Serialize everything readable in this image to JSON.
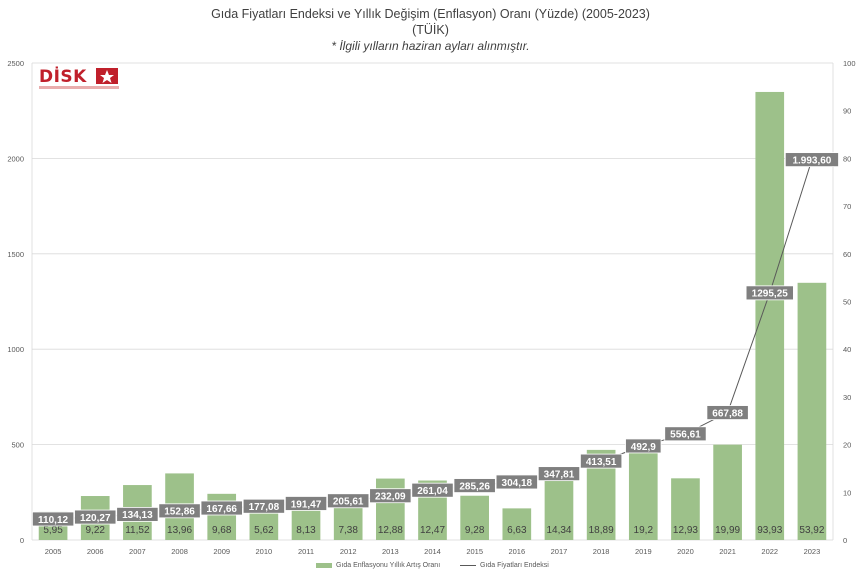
{
  "title": "Gıda Fiyatları Endeksi ve Yıllık Değişim (Enflasyon) Oranı (Yüzde) (2005-2023)",
  "subtitle": "(TÜİK)",
  "note": "* İlgili yılların haziran ayları alınmıştır.",
  "logo": {
    "text": "DİSK",
    "icon": "star-logo-icon"
  },
  "colors": {
    "bar": "#9dc18a",
    "line": "#595959",
    "label_bg": "#7f7f7f",
    "label_text": "#ffffff",
    "grid": "#d9d9d9",
    "axis_text": "#595959"
  },
  "chart_data": {
    "type": "bar",
    "categories": [
      "2005",
      "2006",
      "2007",
      "2008",
      "2009",
      "2010",
      "2011",
      "2012",
      "2013",
      "2014",
      "2015",
      "2016",
      "2017",
      "2018",
      "2019",
      "2020",
      "2021",
      "2022",
      "2023"
    ],
    "series": [
      {
        "name": "Gıda Enflasyonu Yıllık Artış Oranı",
        "type": "bar",
        "axis": "right",
        "values": [
          5.95,
          9.22,
          11.52,
          13.96,
          9.68,
          5.62,
          8.13,
          7.38,
          12.88,
          12.47,
          9.28,
          6.63,
          14.34,
          18.89,
          19.2,
          12.93,
          19.99,
          93.93,
          53.92
        ],
        "labels": [
          "5,95",
          "9,22",
          "11,52",
          "13,96",
          "9,68",
          "5,62",
          "8,13",
          "7,38",
          "12,88",
          "12,47",
          "9,28",
          "6,63",
          "14,34",
          "18,89",
          "19,2",
          "12,93",
          "19,99",
          "93,93",
          "53,92"
        ]
      },
      {
        "name": "Gıda Fiyatları Endeksi",
        "type": "line",
        "axis": "left",
        "values": [
          110.12,
          120.27,
          134.13,
          152.86,
          167.66,
          177.08,
          191.47,
          205.61,
          232.09,
          261.04,
          285.26,
          304.18,
          347.81,
          413.51,
          492.9,
          556.61,
          667.88,
          1295.25,
          1993.6
        ],
        "labels": [
          "110,12",
          "120,27",
          "134,13",
          "152,86",
          "167,66",
          "177,08",
          "191,47",
          "205,61",
          "232,09",
          "261,04",
          "285,26",
          "304,18",
          "347,81",
          "413,51",
          "492,9",
          "556,61",
          "667,88",
          "1295,25",
          "1.993,60"
        ]
      }
    ],
    "y_left": {
      "min": 0,
      "max": 2500,
      "ticks": [
        0,
        500,
        1000,
        1500,
        2000,
        2500
      ]
    },
    "y_right": {
      "min": 0,
      "max": 100,
      "ticks": [
        0,
        10,
        20,
        30,
        40,
        50,
        60,
        70,
        80,
        90,
        100
      ]
    },
    "grid": true,
    "legend_position": "bottom"
  }
}
